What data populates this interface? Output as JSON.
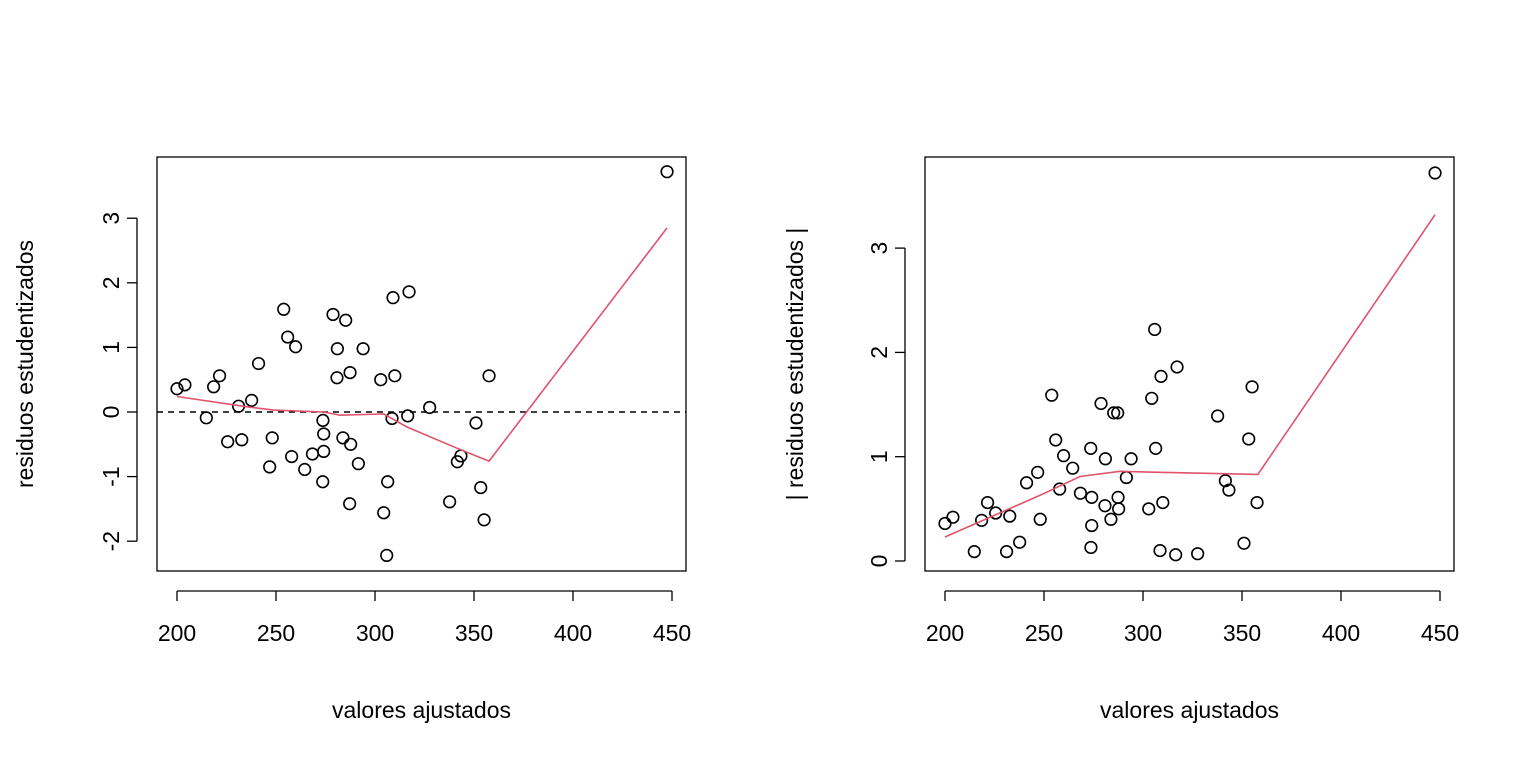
{
  "chart_data": [
    {
      "type": "scatter",
      "xlabel": "valores ajustados",
      "ylabel": "residuos estudentizados",
      "xlim": [
        190,
        456
      ],
      "ylim": [
        -2.45,
        3.9
      ],
      "xticks": [
        "200",
        "250",
        "300",
        "350",
        "400",
        "450"
      ],
      "yticks": [
        "-2",
        "-1",
        "0",
        "1",
        "2",
        "3"
      ],
      "reference_line": {
        "y": 0,
        "style": "dashed"
      },
      "grid": false,
      "colors": {
        "points": "#000000",
        "smooth": "#DF536B"
      },
      "x": [
        200,
        204,
        214.8,
        218.5,
        221.5,
        225.6,
        232.7,
        231.1,
        237.7,
        241.2,
        246.8,
        248.1,
        253.9,
        255.9,
        259.9,
        257.9,
        264.5,
        268.4,
        273.7,
        274.1,
        274.1,
        273.6,
        278.8,
        285.2,
        281,
        280.8,
        287.4,
        283.8,
        287.7,
        291.6,
        287.2,
        294,
        309.1,
        317.2,
        302.9,
        310,
        308.6,
        316.5,
        306.4,
        304.4,
        305.9,
        327.6,
        337.7,
        343.4,
        341.6,
        351,
        353.4,
        355.1,
        357.6,
        447.5
      ],
      "y": [
        0.36,
        0.42,
        -0.09,
        0.39,
        0.56,
        -0.46,
        -0.43,
        0.09,
        0.18,
        0.75,
        -0.85,
        -0.4,
        1.59,
        1.16,
        1.01,
        -0.69,
        -0.89,
        -0.65,
        -0.13,
        -0.34,
        -0.61,
        -1.08,
        1.51,
        1.42,
        0.98,
        0.53,
        0.61,
        -0.4,
        -0.5,
        -0.8,
        -1.42,
        0.98,
        1.77,
        1.86,
        0.5,
        0.56,
        -0.1,
        -0.06,
        -1.08,
        -1.56,
        -2.22,
        0.07,
        -1.39,
        -0.68,
        -0.77,
        -0.17,
        -1.17,
        -1.67,
        0.56,
        3.72
      ],
      "smooth": {
        "x": [
          200,
          235.4,
          248.8,
          274,
          282.5,
          304.4,
          316,
          341.4,
          357.6,
          447.5
        ],
        "y": [
          0.24,
          0.08,
          0.03,
          0.0,
          -0.05,
          -0.03,
          -0.23,
          -0.56,
          -0.76,
          2.85
        ]
      }
    },
    {
      "type": "scatter",
      "xlabel": "valores ajustados",
      "ylabel": "| residuos estudentizados |",
      "xlim": [
        190,
        456
      ],
      "ylim": [
        -0.1,
        3.9
      ],
      "xticks": [
        "200",
        "250",
        "300",
        "350",
        "400",
        "450"
      ],
      "yticks": [
        "0",
        "1",
        "2",
        "3"
      ],
      "grid": false,
      "colors": {
        "points": "#000000",
        "smooth": "#DF536B"
      },
      "x": [
        200,
        204,
        214.8,
        218.5,
        221.5,
        225.6,
        232.7,
        231.1,
        237.7,
        241.2,
        246.8,
        248.1,
        253.9,
        255.9,
        259.9,
        257.9,
        264.5,
        268.4,
        273.7,
        274.1,
        274.1,
        273.6,
        278.8,
        285.2,
        281,
        280.8,
        287.4,
        283.8,
        287.7,
        291.6,
        287.2,
        294,
        309.1,
        317.2,
        302.9,
        310,
        308.6,
        316.5,
        306.4,
        304.4,
        305.9,
        327.6,
        337.7,
        343.4,
        341.6,
        351,
        353.4,
        355.1,
        357.6,
        447.5
      ],
      "y": [
        0.36,
        0.42,
        0.09,
        0.39,
        0.56,
        0.46,
        0.43,
        0.09,
        0.18,
        0.75,
        0.85,
        0.4,
        1.59,
        1.16,
        1.01,
        0.69,
        0.89,
        0.65,
        0.13,
        0.34,
        0.61,
        1.08,
        1.51,
        1.42,
        0.98,
        0.53,
        0.61,
        0.4,
        0.5,
        0.8,
        1.42,
        0.98,
        1.77,
        1.86,
        0.5,
        0.56,
        0.1,
        0.06,
        1.08,
        1.56,
        2.22,
        0.07,
        1.39,
        0.68,
        0.77,
        0.17,
        1.17,
        1.67,
        0.56,
        3.72
      ],
      "smooth": {
        "x": [
          200,
          248,
          268.2,
          288.4,
          308.6,
          358,
          447.5
        ],
        "y": [
          0.23,
          0.63,
          0.81,
          0.86,
          0.85,
          0.83,
          3.32
        ]
      }
    }
  ]
}
